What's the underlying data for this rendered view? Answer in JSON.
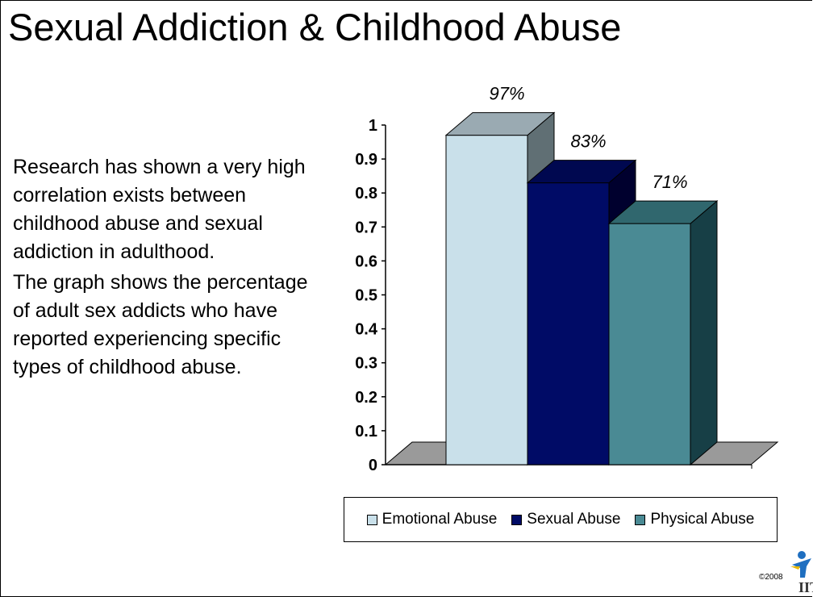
{
  "title": "Sexual Addiction & Childhood Abuse",
  "body": [
    "Research has shown a very high correlation exists between childhood abuse and sexual addiction in adulthood.",
    "The graph shows the percentage of adult sex addicts who have reported experiencing specific types of childhood abuse."
  ],
  "chart_data": {
    "type": "bar",
    "three_d": true,
    "series": [
      {
        "name": "Emotional Abuse",
        "value": 0.97,
        "label": "97%",
        "color": "#c9e0ea"
      },
      {
        "name": "Sexual Abuse",
        "value": 0.83,
        "label": "83%",
        "color": "#000b66"
      },
      {
        "name": "Physical Abuse",
        "value": 0.71,
        "label": "71%",
        "color": "#4a8a94"
      }
    ],
    "yticks": [
      "0",
      "0.1",
      "0.2",
      "0.3",
      "0.4",
      "0.5",
      "0.6",
      "0.7",
      "0.8",
      "0.9",
      "1"
    ],
    "ylim": [
      0,
      1
    ],
    "grid": false,
    "legend": "bottom"
  },
  "footer": {
    "copyright": "©2008",
    "logo": "IITAP"
  },
  "colors": {
    "floor": "#9a9a9a",
    "top_emotional": "#9aaab2",
    "side_emotional": "#606f74",
    "top_sexual": "#000850",
    "side_sexual": "#00002e",
    "top_physical": "#30676e",
    "side_physical": "#173f46"
  }
}
